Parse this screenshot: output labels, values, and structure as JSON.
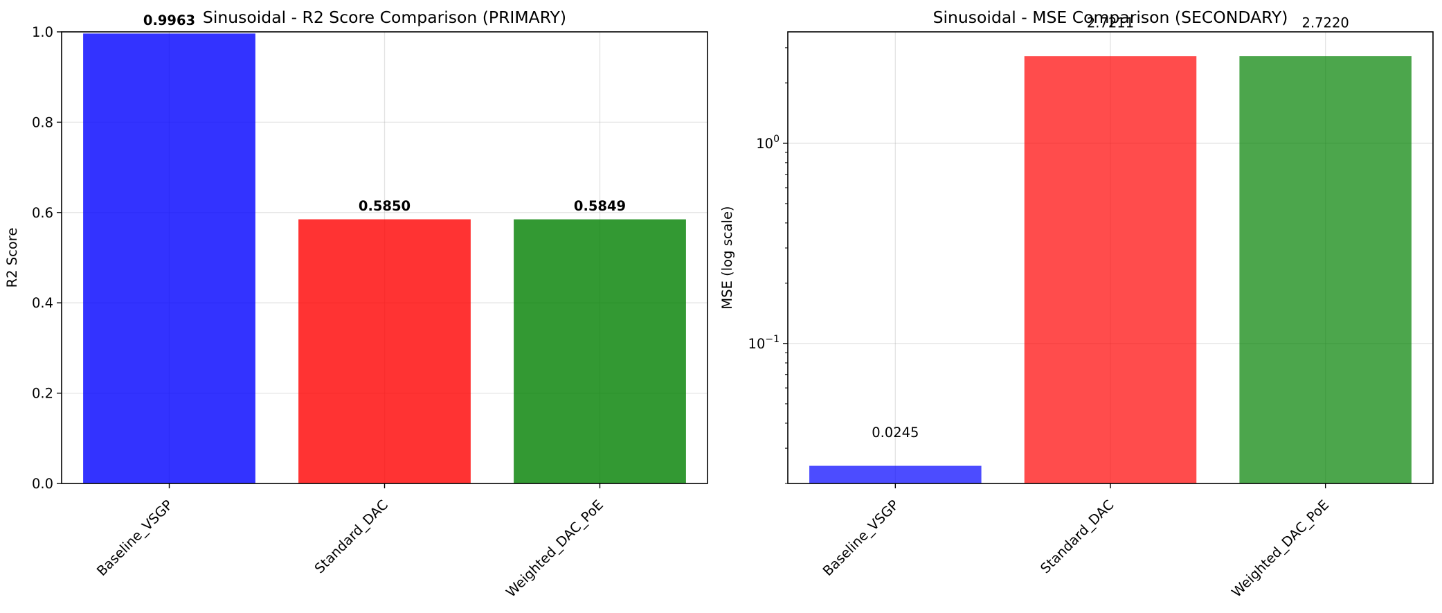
{
  "chart_data": [
    {
      "type": "bar",
      "title": "Sinusoidal - R2 Score Comparison (PRIMARY)",
      "xlabel": "",
      "ylabel": "R2 Score",
      "categories": [
        "Baseline_VSGP",
        "Standard_DAC",
        "Weighted_DAC_PoE"
      ],
      "values": [
        0.9963,
        0.585,
        0.5849
      ],
      "value_labels": [
        "0.9963",
        "0.5850",
        "0.5849"
      ],
      "colors": [
        "#0000ff",
        "#ff0000",
        "#008000"
      ],
      "bar_alpha": 0.8,
      "ylim": [
        0,
        1
      ],
      "yticks": [
        0.0,
        0.2,
        0.4,
        0.6,
        0.8,
        1.0
      ],
      "ytick_labels": [
        "0.0",
        "0.2",
        "0.4",
        "0.6",
        "0.8",
        "1.0"
      ],
      "log_scale": false,
      "grid": true
    },
    {
      "type": "bar",
      "title": "Sinusoidal - MSE Comparison (SECONDARY)",
      "xlabel": "",
      "ylabel": "MSE (log scale)",
      "categories": [
        "Baseline_VSGP",
        "Standard_DAC",
        "Weighted_DAC_PoE"
      ],
      "values": [
        0.0245,
        2.7211,
        2.722
      ],
      "value_labels": [
        "0.0245",
        "2.7211",
        "2.7220"
      ],
      "colors": [
        "#0000ff",
        "#ff0000",
        "#008000"
      ],
      "bar_alpha": 0.7,
      "ylim": [
        0.02,
        3.6
      ],
      "yticks": [
        0.1,
        1
      ],
      "ytick_labels": [
        {
          "base": "10",
          "exp": "−1"
        },
        {
          "base": "10",
          "exp": "0"
        }
      ],
      "log_scale": true,
      "grid": true
    }
  ]
}
